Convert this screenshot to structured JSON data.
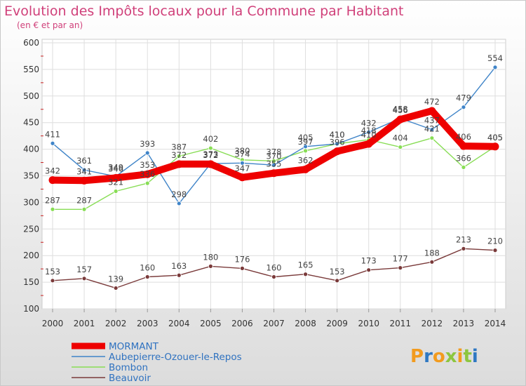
{
  "chart_data": {
    "type": "line",
    "title": "Evolution des Impôts locaux pour la Commune par Habitant",
    "subtitle": "(en € et par an)",
    "x": [
      2000,
      2001,
      2002,
      2003,
      2004,
      2005,
      2006,
      2007,
      2008,
      2009,
      2010,
      2011,
      2012,
      2013,
      2014
    ],
    "ylim": [
      100,
      600
    ],
    "yticks": [
      100,
      150,
      200,
      250,
      300,
      350,
      400,
      450,
      500,
      550,
      600
    ],
    "grid": true,
    "legend_position": "bottom-left",
    "series": [
      {
        "name": "MORMANT",
        "color": "#ee0000",
        "values": [
          342,
          341,
          346,
          353,
          372,
          372,
          347,
          355,
          362,
          396,
          410,
          456,
          472,
          406,
          405
        ]
      },
      {
        "name": "Aubepierre-Ozouer-le-Repos",
        "color": "#3f84c8",
        "values": [
          411,
          361,
          349,
          393,
          298,
          373,
          374,
          370,
          405,
          410,
          432,
          458,
          437,
          479,
          554
        ]
      },
      {
        "name": "Bombon",
        "color": "#88dd55",
        "values": [
          287,
          287,
          321,
          336,
          387,
          402,
          380,
          378,
          397,
          410,
          418,
          404,
          421,
          366,
          405
        ]
      },
      {
        "name": "Beauvoir",
        "color": "#7a3a3a",
        "values": [
          153,
          157,
          139,
          160,
          163,
          180,
          176,
          160,
          165,
          153,
          173,
          177,
          188,
          213,
          210
        ]
      }
    ]
  },
  "watermark": "Proxiti"
}
